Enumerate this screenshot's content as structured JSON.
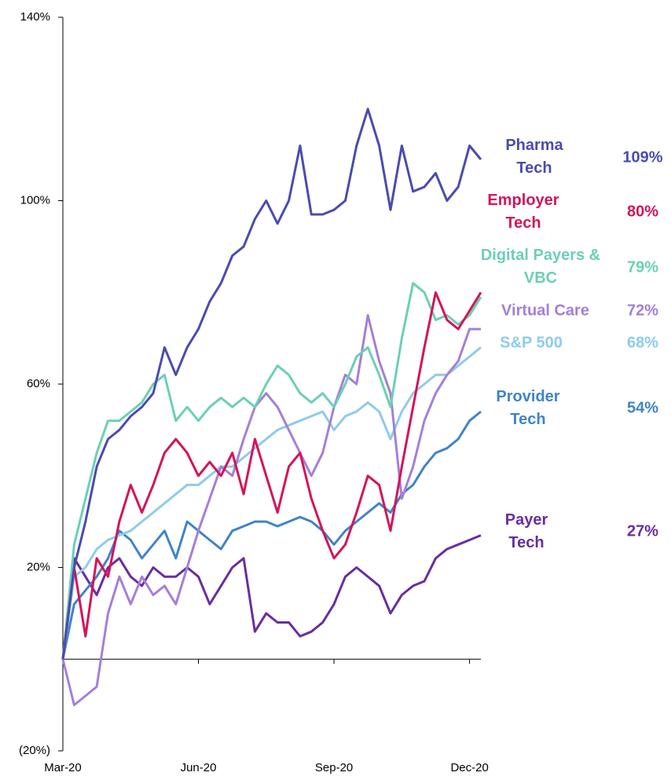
{
  "chart_data": {
    "type": "line",
    "x": [
      0,
      0.25,
      0.5,
      0.75,
      1,
      1.25,
      1.5,
      1.75,
      2,
      2.25,
      2.5,
      2.75,
      3,
      3.25,
      3.5,
      3.75,
      4,
      4.25,
      4.5,
      4.75,
      5,
      5.25,
      5.5,
      5.75,
      6,
      6.25,
      6.5,
      6.75,
      7,
      7.25,
      7.5,
      7.75,
      8,
      8.25,
      8.5,
      8.75,
      9,
      9.25
    ],
    "xlim": [
      0,
      9.25
    ],
    "xticks": [
      {
        "value": 0,
        "label": "Mar-20"
      },
      {
        "value": 3,
        "label": "Jun-20"
      },
      {
        "value": 6,
        "label": "Sep-20"
      },
      {
        "value": 9,
        "label": "Dec-20"
      }
    ],
    "ylim": [
      -20,
      140
    ],
    "yticks": [
      {
        "value": -20,
        "label": "(20%)"
      },
      {
        "value": 20,
        "label": "20%"
      },
      {
        "value": 60,
        "label": "60%"
      },
      {
        "value": 100,
        "label": "100%"
      },
      {
        "value": 140,
        "label": "140%"
      }
    ],
    "series": [
      {
        "name": "Payer Tech",
        "color": "#6a2d9f",
        "end_label": "27%",
        "values": [
          0,
          22,
          18,
          14,
          20,
          22,
          18,
          16,
          20,
          18,
          18,
          20,
          18,
          12,
          16,
          20,
          22,
          6,
          10,
          8,
          8,
          5,
          6,
          8,
          12,
          18,
          20,
          18,
          16,
          10,
          14,
          16,
          17,
          22,
          24,
          25,
          26,
          27
        ]
      },
      {
        "name": "Provider Tech",
        "color": "#3f84c8",
        "end_label": "54%",
        "values": [
          0,
          12,
          15,
          18,
          22,
          28,
          26,
          22,
          25,
          28,
          22,
          30,
          28,
          26,
          24,
          28,
          29,
          30,
          30,
          29,
          30,
          31,
          30,
          28,
          25,
          28,
          30,
          32,
          34,
          32,
          36,
          38,
          42,
          45,
          46,
          48,
          52,
          54
        ]
      },
      {
        "name": "S&P 500",
        "color": "#8ecbec",
        "end_label": "68%",
        "values": [
          0,
          18,
          20,
          24,
          26,
          27,
          28,
          30,
          32,
          34,
          36,
          38,
          38,
          40,
          42,
          42,
          44,
          46,
          48,
          50,
          51,
          52,
          53,
          54,
          50,
          53,
          54,
          56,
          54,
          48,
          54,
          58,
          60,
          62,
          62,
          64,
          66,
          68
        ]
      },
      {
        "name": "Virtual Care",
        "color": "#a47fd8",
        "end_label": "72%",
        "values": [
          0,
          -10,
          -8,
          -6,
          10,
          18,
          12,
          18,
          14,
          16,
          12,
          20,
          28,
          35,
          42,
          40,
          48,
          55,
          58,
          55,
          50,
          45,
          40,
          45,
          55,
          62,
          60,
          75,
          65,
          58,
          35,
          42,
          52,
          58,
          62,
          65,
          72,
          72
        ]
      },
      {
        "name": "Digital Payers & VBC",
        "color": "#6ccfb6",
        "end_label": "79%",
        "values": [
          0,
          25,
          35,
          45,
          52,
          52,
          54,
          56,
          60,
          62,
          52,
          55,
          52,
          55,
          57,
          55,
          57,
          55,
          60,
          64,
          62,
          58,
          56,
          58,
          55,
          60,
          66,
          68,
          62,
          55,
          70,
          82,
          80,
          74,
          75,
          73,
          75,
          79
        ]
      },
      {
        "name": "Employer Tech",
        "color": "#d4145a",
        "end_label": "80%",
        "values": [
          0,
          20,
          5,
          22,
          18,
          30,
          38,
          32,
          38,
          45,
          48,
          45,
          40,
          43,
          40,
          45,
          36,
          48,
          40,
          32,
          42,
          45,
          35,
          28,
          22,
          25,
          32,
          40,
          38,
          28,
          42,
          55,
          68,
          80,
          74,
          72,
          76,
          80
        ]
      },
      {
        "name": "Pharma Tech",
        "color": "#4b4bb0",
        "end_label": "109%",
        "values": [
          0,
          20,
          30,
          42,
          48,
          50,
          53,
          55,
          58,
          68,
          62,
          68,
          72,
          78,
          82,
          88,
          90,
          96,
          100,
          95,
          100,
          112,
          97,
          97,
          98,
          100,
          112,
          120,
          112,
          98,
          112,
          102,
          103,
          106,
          100,
          103,
          112,
          109
        ]
      }
    ]
  }
}
